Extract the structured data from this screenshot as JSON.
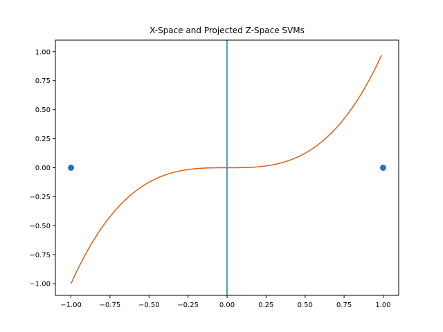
{
  "chart_data": {
    "type": "line",
    "title": "X-Space and Projected Z-Space SVMs",
    "xlabel": "",
    "ylabel": "",
    "xlim": [
      -1.1,
      1.1
    ],
    "ylim": [
      -1.1,
      1.1
    ],
    "grid": false,
    "x_ticks": [
      -1.0,
      -0.75,
      -0.5,
      -0.25,
      0.0,
      0.25,
      0.5,
      0.75,
      1.0
    ],
    "x_tick_labels": [
      "−1.00",
      "−0.75",
      "−0.50",
      "−0.25",
      "0.00",
      "0.25",
      "0.50",
      "0.75",
      "1.00"
    ],
    "y_ticks": [
      -1.0,
      -0.75,
      -0.5,
      -0.25,
      0.0,
      0.25,
      0.5,
      0.75,
      1.0
    ],
    "y_tick_labels": [
      "−1.00",
      "−0.75",
      "−0.50",
      "−0.25",
      "0.00",
      "0.25",
      "0.50",
      "0.75",
      "1.00"
    ],
    "series": [
      {
        "kind": "scatter",
        "color": "#1f77b4",
        "x": [
          -1.0,
          1.0
        ],
        "y": [
          0.0,
          0.0
        ]
      },
      {
        "kind": "vline",
        "color": "#1f77b4",
        "x": 0.0
      },
      {
        "kind": "line",
        "color": "#d95f14",
        "function": "x^3",
        "x_range": [
          -1.0,
          0.99
        ]
      }
    ]
  }
}
